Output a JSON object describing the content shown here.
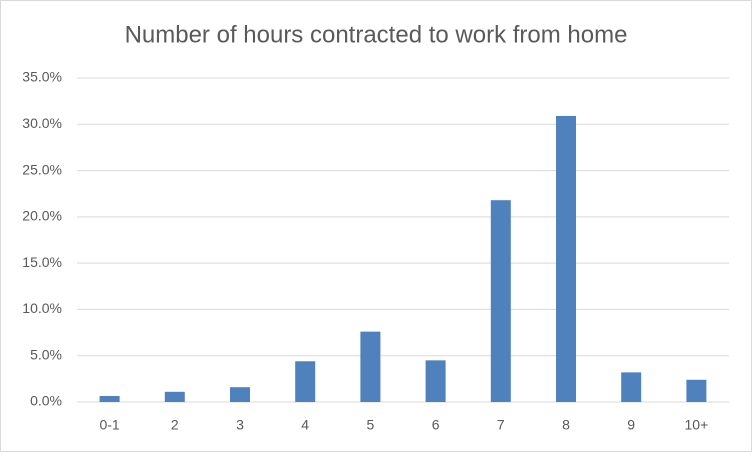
{
  "chart_data": {
    "type": "bar",
    "title": "Number of hours contracted to work from home",
    "categories": [
      "0-1",
      "2",
      "3",
      "4",
      "5",
      "6",
      "7",
      "8",
      "9",
      "10+"
    ],
    "values": [
      0.65,
      1.1,
      1.6,
      4.4,
      7.6,
      4.5,
      21.8,
      30.9,
      3.2,
      2.4
    ],
    "color": "#4f81bd",
    "ylim": [
      0,
      35
    ],
    "yticks": [
      {
        "value": 0,
        "label": "0.0%"
      },
      {
        "value": 5,
        "label": "5.0%"
      },
      {
        "value": 10,
        "label": "10.0%"
      },
      {
        "value": 15,
        "label": "15.0%"
      },
      {
        "value": 20,
        "label": "20.0%"
      },
      {
        "value": 25,
        "label": "25.0%"
      },
      {
        "value": 30,
        "label": "30.0%"
      },
      {
        "value": 35,
        "label": "35.0%"
      }
    ],
    "grid": true
  }
}
